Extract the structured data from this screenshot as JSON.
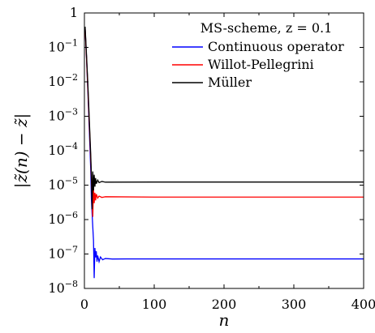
{
  "chart_data": {
    "type": "line",
    "yscale": "log",
    "xlim": [
      0,
      400
    ],
    "ylim": [
      1e-08,
      1
    ],
    "xlabel": "n",
    "ylabel": "|z̃(n) − z̃|",
    "x_ticks": [
      "0",
      "100",
      "200",
      "300",
      "400"
    ],
    "y_ticks": [
      {
        "value": 1,
        "base": "1",
        "exp": ""
      },
      {
        "value": 0.1,
        "base": "10",
        "exp": "−1"
      },
      {
        "value": 0.01,
        "base": "10",
        "exp": "−2"
      },
      {
        "value": 0.001,
        "base": "10",
        "exp": "−3"
      },
      {
        "value": 0.0001,
        "base": "10",
        "exp": "−4"
      },
      {
        "value": 1e-05,
        "base": "10",
        "exp": "−5"
      },
      {
        "value": 1e-06,
        "base": "10",
        "exp": "−6"
      },
      {
        "value": 1e-07,
        "base": "10",
        "exp": "−7"
      },
      {
        "value": 1e-08,
        "base": "10",
        "exp": "−8"
      }
    ],
    "legend_title": "MS-scheme, z = 0.1",
    "legend_position": "top-right",
    "grid": false,
    "series": [
      {
        "name": "Continuous operator",
        "color": "#0000ff",
        "points": [
          [
            1,
            0.35
          ],
          [
            3,
            0.05
          ],
          [
            5,
            0.005
          ],
          [
            7,
            0.0004
          ],
          [
            9,
            3e-05
          ],
          [
            10,
            4e-06
          ],
          [
            11,
            1.5e-06
          ],
          [
            12,
            6e-07
          ],
          [
            13,
            2.5e-07
          ],
          [
            14,
            2e-08
          ],
          [
            15,
            1.5e-07
          ],
          [
            16,
            8e-08
          ],
          [
            17,
            1.2e-07
          ],
          [
            18,
            6e-08
          ],
          [
            19,
            9e-08
          ],
          [
            21,
            6e-08
          ],
          [
            23,
            8.2e-08
          ],
          [
            26,
            6.8e-08
          ],
          [
            30,
            7.4e-08
          ],
          [
            40,
            7.15e-08
          ],
          [
            60,
            7.2e-08
          ],
          [
            100,
            7.2e-08
          ],
          [
            400,
            7.2e-08
          ]
        ]
      },
      {
        "name": "Willot-Pellegrini",
        "color": "#ff0000",
        "points": [
          [
            1,
            0.35
          ],
          [
            3,
            0.05
          ],
          [
            5,
            0.006
          ],
          [
            7,
            0.0006
          ],
          [
            9,
            6e-05
          ],
          [
            10,
            1.5e-05
          ],
          [
            11,
            3e-06
          ],
          [
            12,
            1.2e-06
          ],
          [
            13,
            8e-06
          ],
          [
            14,
            3e-06
          ],
          [
            15,
            6e-06
          ],
          [
            16,
            3.6e-06
          ],
          [
            17,
            5.5e-06
          ],
          [
            19,
            4.2e-06
          ],
          [
            21,
            4.8e-06
          ],
          [
            25,
            4.4e-06
          ],
          [
            30,
            4.6e-06
          ],
          [
            100,
            4.5e-06
          ],
          [
            400,
            4.5e-06
          ]
        ]
      },
      {
        "name": "Müller",
        "color": "#000000",
        "points": [
          [
            1,
            0.4
          ],
          [
            3,
            0.06
          ],
          [
            5,
            0.008
          ],
          [
            7,
            0.0008
          ],
          [
            9,
            8e-05
          ],
          [
            10,
            2e-05
          ],
          [
            11,
            2e-06
          ],
          [
            12,
            2.5e-05
          ],
          [
            13,
            7e-06
          ],
          [
            14,
            2e-05
          ],
          [
            15,
            9e-06
          ],
          [
            16,
            1.6e-05
          ],
          [
            17,
            1.1e-05
          ],
          [
            19,
            1.4e-05
          ],
          [
            21,
            1.18e-05
          ],
          [
            25,
            1.28e-05
          ],
          [
            30,
            1.22e-05
          ],
          [
            100,
            1.23e-05
          ],
          [
            400,
            1.23e-05
          ]
        ]
      }
    ]
  }
}
